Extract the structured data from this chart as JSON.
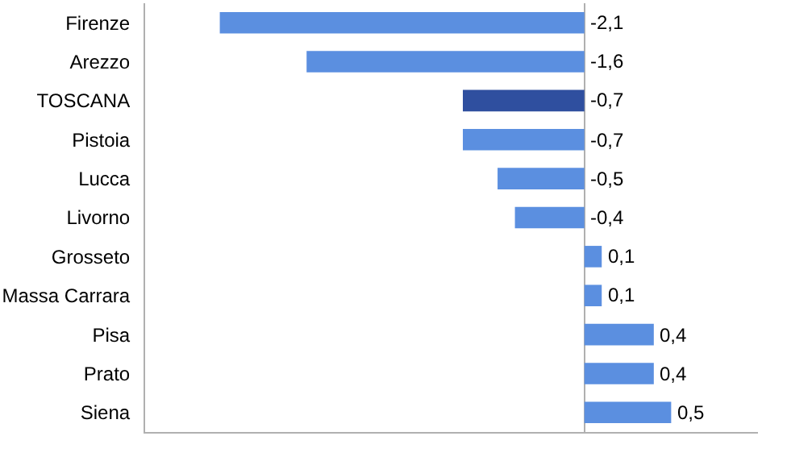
{
  "chart_data": {
    "type": "bar",
    "orientation": "horizontal",
    "categories": [
      "Firenze",
      "Arezzo",
      "TOSCANA",
      "Pistoia",
      "Lucca",
      "Livorno",
      "Grosseto",
      "Massa Carrara",
      "Pisa",
      "Prato",
      "Siena"
    ],
    "values": [
      -2.1,
      -1.6,
      -0.7,
      -0.7,
      -0.5,
      -0.4,
      0.1,
      0.1,
      0.4,
      0.4,
      0.5
    ],
    "colors": [
      "#5b8fe0",
      "#5b8fe0",
      "#2f4f9f",
      "#5b8fe0",
      "#5b8fe0",
      "#5b8fe0",
      "#5b8fe0",
      "#5b8fe0",
      "#5b8fe0",
      "#5b8fe0",
      "#5b8fe0"
    ],
    "value_labels": [
      "-2,1",
      "-1,6",
      "-0,7",
      "-0,7",
      "-0,5",
      "-0,4",
      "0,1",
      "0,1",
      "0,4",
      "0,4",
      "0,5"
    ],
    "xlim": [
      -2.53,
      1.0
    ],
    "tick_labels": "y"
  }
}
